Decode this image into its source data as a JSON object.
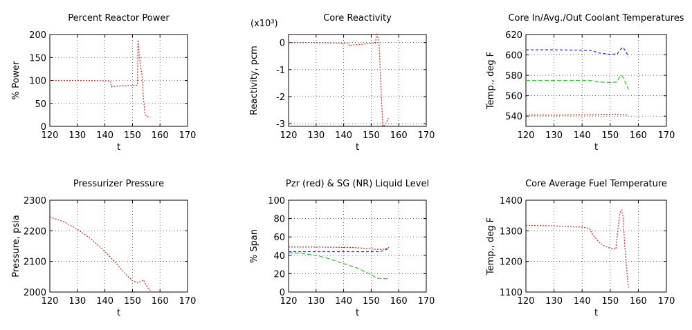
{
  "chart_data": [
    {
      "id": "power",
      "type": "line",
      "title": "Percent Reactor Power",
      "xlabel": "t",
      "ylabel": "% Power",
      "xlim": [
        120,
        170
      ],
      "ylim": [
        0,
        200
      ],
      "xticks": [
        120,
        130,
        140,
        150,
        160,
        170
      ],
      "yticks": [
        0,
        50,
        100,
        150,
        200
      ],
      "grid": true,
      "series": [
        {
          "color": "#e03030",
          "dash": "2 2",
          "x": [
            120,
            130,
            142,
            142.3,
            145,
            150,
            151.8,
            152.0,
            152.5,
            153.0,
            153.5,
            154.0,
            154.5,
            155.0,
            156.5
          ],
          "y": [
            100,
            100,
            99,
            86,
            88,
            89,
            90,
            188,
            155,
            130,
            110,
            60,
            30,
            22,
            20
          ]
        }
      ]
    },
    {
      "id": "reactivity",
      "type": "line",
      "title": "Core Reactivity",
      "exponent": "(x10³)",
      "xlabel": "t",
      "ylabel": "Reactivity, pcm",
      "xlim": [
        120,
        170
      ],
      "ylim": [
        -3.1,
        0.3
      ],
      "xticks": [
        120,
        130,
        140,
        150,
        160,
        170
      ],
      "yticks": [
        -3,
        -2,
        -1,
        0
      ],
      "grid": true,
      "series": [
        {
          "color": "#e03030",
          "dash": "2 2",
          "x": [
            120,
            130,
            141.5,
            142.2,
            143,
            148,
            151.5,
            152.0,
            152.8,
            153.5,
            154.2,
            155.0,
            155.5,
            156.3
          ],
          "y": [
            0,
            0,
            -0.02,
            -0.13,
            -0.09,
            -0.05,
            -0.02,
            0.3,
            0.1,
            -1.5,
            -3.1,
            -3.05,
            -2.95,
            -2.8
          ]
        }
      ]
    },
    {
      "id": "coolant",
      "type": "line",
      "title": "Core In/Avg./Out Coolant Temperatures",
      "xlabel": "t",
      "ylabel": "Temp., deg F",
      "xlim": [
        120,
        170
      ],
      "ylim": [
        530,
        620
      ],
      "xticks": [
        120,
        130,
        140,
        150,
        160,
        170
      ],
      "yticks": [
        540,
        560,
        580,
        600,
        620
      ],
      "grid": true,
      "series": [
        {
          "color": "#3030e0",
          "dash": "4 3",
          "x": [
            120,
            130,
            143,
            146,
            150,
            152.5,
            153.5,
            154.5,
            155.2,
            156.0,
            156.5
          ],
          "y": [
            605,
            605,
            604.5,
            602,
            600.5,
            601,
            605,
            607.5,
            605,
            601,
            598
          ]
        },
        {
          "color": "#30d030",
          "dash": "6 3",
          "x": [
            120,
            130,
            143,
            146,
            150,
            152.5,
            153.2,
            154.0,
            154.8,
            155.5,
            156.5
          ],
          "y": [
            575,
            575,
            575,
            573.5,
            573,
            573.5,
            578,
            580,
            577,
            572,
            566
          ]
        },
        {
          "color": "#e03030",
          "dash": "2 2",
          "x": [
            120,
            130,
            143,
            150,
            152,
            154,
            156.5
          ],
          "y": [
            541,
            541,
            541.3,
            541.8,
            542,
            541.5,
            541
          ]
        }
      ]
    },
    {
      "id": "pzr_pressure",
      "type": "line",
      "title": "Pressurizer Pressure",
      "xlabel": "t",
      "ylabel": "Pressure, psia",
      "xlim": [
        120,
        170
      ],
      "ylim": [
        2000,
        2300
      ],
      "xticks": [
        120,
        130,
        140,
        150,
        160,
        170
      ],
      "yticks": [
        2000,
        2100,
        2200,
        2300
      ],
      "grid": true,
      "series": [
        {
          "color": "#e03030",
          "dash": "2 2",
          "x": [
            120,
            125,
            130,
            135,
            140,
            144,
            147,
            150,
            152,
            153,
            154,
            154.5,
            155.5,
            156.5
          ],
          "y": [
            2245,
            2230,
            2205,
            2173,
            2132,
            2095,
            2063,
            2037,
            2030,
            2035,
            2040,
            2030,
            2015,
            2005
          ]
        }
      ]
    },
    {
      "id": "levels",
      "type": "line",
      "title": "Pzr (red) & SG (NR) Liquid Level",
      "xlabel": "t",
      "ylabel": "% Span",
      "xlim": [
        120,
        170
      ],
      "ylim": [
        0,
        100
      ],
      "xticks": [
        120,
        130,
        140,
        150,
        160,
        170
      ],
      "yticks": [
        0,
        20,
        40,
        60,
        80,
        100
      ],
      "grid": true,
      "series": [
        {
          "color": "#e03030",
          "dash": "2 2",
          "x": [
            120,
            130,
            143,
            148,
            152,
            154,
            155.5,
            156.5
          ],
          "y": [
            49,
            49,
            48.5,
            47.5,
            46.5,
            46.5,
            47.5,
            48.5
          ]
        },
        {
          "color": "#3030e0",
          "dash": "4 3",
          "x": [
            120,
            130,
            143,
            150,
            153,
            154.5,
            155.5,
            156.5
          ],
          "y": [
            44,
            44,
            44,
            44,
            44,
            45,
            46.5,
            47.5
          ]
        },
        {
          "color": "#30d030",
          "dash": "6 3",
          "x": [
            120,
            125,
            130,
            135,
            140,
            145,
            150,
            152,
            154,
            156.5
          ],
          "y": [
            43,
            42,
            40,
            36,
            31,
            26,
            19,
            15,
            14.5,
            14.5
          ]
        }
      ]
    },
    {
      "id": "fuel_temp",
      "type": "line",
      "title": "Core Average Fuel Temperature",
      "xlabel": "t",
      "ylabel": "Temp., deg F",
      "xlim": [
        120,
        170
      ],
      "ylim": [
        1100,
        1400
      ],
      "xticks": [
        120,
        130,
        140,
        150,
        160,
        170
      ],
      "yticks": [
        1100,
        1200,
        1300,
        1400
      ],
      "grid": true,
      "series": [
        {
          "color": "#e03030",
          "dash": "2 2",
          "x": [
            120,
            130,
            140,
            142.5,
            144,
            146,
            148,
            150,
            152,
            152.8,
            153.5,
            154.0,
            154.5,
            155.2,
            156.0,
            156.5
          ],
          "y": [
            1318,
            1316,
            1312,
            1308,
            1285,
            1263,
            1250,
            1243,
            1240,
            1310,
            1360,
            1368,
            1350,
            1250,
            1160,
            1115
          ]
        }
      ]
    }
  ]
}
